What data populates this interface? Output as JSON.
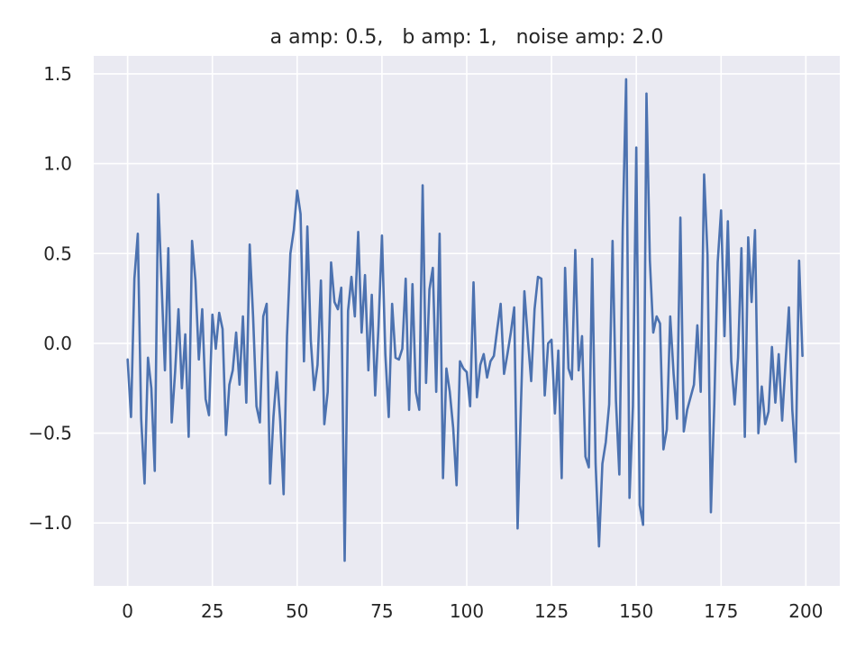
{
  "chart_data": {
    "type": "line",
    "title": "a amp: 0.5,   b amp: 1,   noise amp: 2.0",
    "xlabel": "",
    "ylabel": "",
    "xlim": [
      -10,
      210
    ],
    "ylim": [
      -1.35,
      1.6
    ],
    "grid": true,
    "x_ticks": [
      0,
      25,
      50,
      75,
      100,
      125,
      150,
      175,
      200
    ],
    "x_tick_labels": [
      "0",
      "25",
      "50",
      "75",
      "100",
      "125",
      "150",
      "175",
      "200"
    ],
    "y_ticks": [
      -1.0,
      -0.5,
      0.0,
      0.5,
      1.0,
      1.5
    ],
    "y_tick_labels": [
      "−1.0",
      "−0.5",
      "0.0",
      "0.5",
      "1.0",
      "1.5"
    ],
    "line_color": "#4c72b0",
    "background_color": "#eaeaf2",
    "series": [
      {
        "values": [
          -0.09,
          -0.41,
          0.36,
          0.61,
          -0.42,
          -0.78,
          -0.08,
          -0.25,
          -0.71,
          0.83,
          0.34,
          -0.15,
          0.53,
          -0.44,
          -0.16,
          0.19,
          -0.25,
          0.05,
          -0.52,
          0.57,
          0.35,
          -0.09,
          0.19,
          -0.31,
          -0.4,
          0.16,
          -0.03,
          0.17,
          0.08,
          -0.51,
          -0.23,
          -0.15,
          0.06,
          -0.23,
          0.15,
          -0.33,
          0.55,
          0.15,
          -0.35,
          -0.44,
          0.15,
          0.22,
          -0.78,
          -0.41,
          -0.16,
          -0.43,
          -0.84,
          0.04,
          0.5,
          0.63,
          0.85,
          0.72,
          -0.1,
          0.65,
          0.02,
          -0.26,
          -0.12,
          0.35,
          -0.45,
          -0.27,
          0.45,
          0.23,
          0.19,
          0.31,
          -1.21,
          0.18,
          0.37,
          0.15,
          0.62,
          0.06,
          0.38,
          -0.15,
          0.27,
          -0.29,
          0.1,
          0.6,
          -0.06,
          -0.41,
          0.22,
          -0.08,
          -0.09,
          -0.03,
          0.36,
          -0.37,
          0.33,
          -0.27,
          -0.37,
          0.88,
          -0.22,
          0.3,
          0.42,
          -0.27,
          0.61,
          -0.75,
          -0.14,
          -0.27,
          -0.47,
          -0.79,
          -0.1,
          -0.14,
          -0.16,
          -0.35,
          0.34,
          -0.3,
          -0.12,
          -0.06,
          -0.19,
          -0.1,
          -0.07,
          0.08,
          0.22,
          -0.17,
          -0.06,
          0.06,
          0.2,
          -1.03,
          -0.33,
          0.29,
          0.03,
          -0.21,
          0.19,
          0.37,
          0.36,
          -0.29,
          0.0,
          0.02,
          -0.39,
          -0.04,
          -0.75,
          0.42,
          -0.14,
          -0.2,
          0.52,
          -0.15,
          0.04,
          -0.63,
          -0.69,
          0.47,
          -0.67,
          -1.13,
          -0.67,
          -0.55,
          -0.34,
          0.57,
          -0.32,
          -0.73,
          0.64,
          1.47,
          -0.86,
          -0.35,
          1.09,
          -0.9,
          -1.01,
          1.39,
          0.46,
          0.06,
          0.15,
          0.11,
          -0.59,
          -0.48,
          0.15,
          -0.17,
          -0.42,
          0.7,
          -0.49,
          -0.37,
          -0.3,
          -0.23,
          0.1,
          -0.27,
          0.94,
          0.49,
          -0.94,
          -0.34,
          0.45,
          0.74,
          0.04,
          0.68,
          -0.1,
          -0.34,
          -0.08,
          0.53,
          -0.52,
          0.59,
          0.23,
          0.63,
          -0.5,
          -0.24,
          -0.45,
          -0.38,
          -0.02,
          -0.33,
          -0.06,
          -0.43,
          -0.11,
          0.2,
          -0.37,
          -0.66,
          0.46,
          -0.07
        ]
      }
    ]
  }
}
